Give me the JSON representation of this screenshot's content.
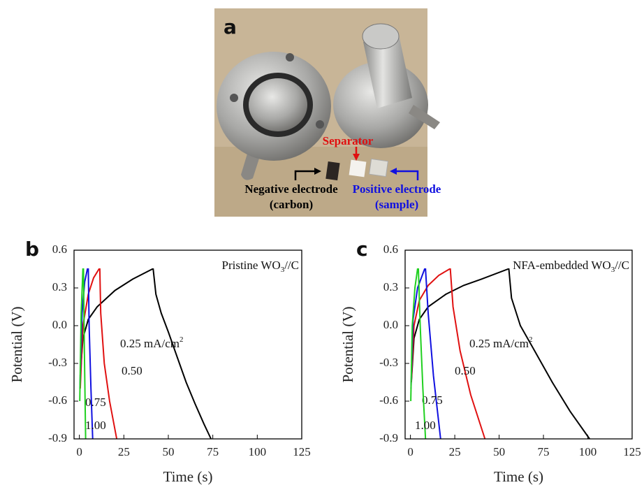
{
  "photo": {
    "panel_label": "a",
    "separator": "Separator",
    "negative": [
      "Negative electrode",
      "(carbon)"
    ],
    "positive": [
      "Positive electrode",
      "(sample)"
    ]
  },
  "chart_data": [
    {
      "type": "line",
      "panel_label": "b",
      "x_label": "Time (s)",
      "y_label": "Potential (V)",
      "note": {
        "text": "Pristine WO",
        "subscript": "3",
        "after": "//C",
        "color": "#2020d0"
      },
      "xlim": [
        -3,
        125
      ],
      "xticks": [
        0,
        25,
        50,
        75,
        100,
        125
      ],
      "ylim": [
        -0.9,
        0.6
      ],
      "yticks": [
        -0.9,
        -0.6,
        -0.3,
        {
          "value": 0,
          "label": "0.0"
        },
        0.3,
        0.6
      ],
      "series": [
        {
          "name": "0.25 mA/cm",
          "name_superscript": "2",
          "color": "#000000",
          "x": [
            0.5,
            2,
            5,
            10,
            20,
            30,
            41,
            41.5,
            43,
            46,
            50,
            55,
            60,
            65,
            70,
            74
          ],
          "values": [
            -0.4,
            -0.1,
            0.05,
            0.15,
            0.28,
            0.37,
            0.45,
            0.45,
            0.25,
            0.1,
            -0.05,
            -0.25,
            -0.45,
            -0.62,
            -0.78,
            -0.9
          ]
        },
        {
          "name": "0.50",
          "color": "#e01010",
          "x": [
            0.5,
            2,
            5,
            8,
            11,
            11.5,
            12,
            14,
            17,
            21
          ],
          "values": [
            -0.5,
            0.0,
            0.25,
            0.38,
            0.45,
            0.45,
            0.1,
            -0.3,
            -0.6,
            -0.9
          ]
        },
        {
          "name": "0.75",
          "color": "#1010e0",
          "x": [
            0.3,
            1.5,
            3,
            4.5,
            5,
            5.5,
            6.5,
            7.5
          ],
          "values": [
            -0.5,
            0.1,
            0.35,
            0.45,
            0.45,
            0.0,
            -0.5,
            -0.9
          ]
        },
        {
          "name": "1.00",
          "color": "#20d020",
          "x": [
            0.2,
            1,
            2,
            2.3,
            2.8,
            3.5
          ],
          "values": [
            -0.6,
            0.1,
            0.45,
            0.45,
            -0.2,
            -0.9
          ]
        }
      ]
    },
    {
      "type": "line",
      "panel_label": "c",
      "x_label": "Time (s)",
      "y_label": "Potential (V)",
      "note": {
        "text": "NFA-embedded WO",
        "subscript": "3",
        "after": "//C",
        "color": "#e01010"
      },
      "xlim": [
        -3,
        125
      ],
      "xticks": [
        0,
        25,
        50,
        75,
        100,
        125
      ],
      "ylim": [
        -0.9,
        0.6
      ],
      "yticks": [
        -0.9,
        -0.6,
        -0.3,
        {
          "value": 0,
          "label": "0.0"
        },
        0.3,
        0.6
      ],
      "series": [
        {
          "name": "0.25 mA/cm",
          "name_superscript": "2",
          "color": "#000000",
          "x": [
            0.5,
            2,
            5,
            10,
            20,
            30,
            40,
            55,
            55.5,
            57,
            62,
            70,
            80,
            90,
            101
          ],
          "values": [
            -0.45,
            -0.1,
            0.05,
            0.15,
            0.25,
            0.32,
            0.37,
            0.45,
            0.45,
            0.22,
            0.0,
            -0.2,
            -0.45,
            -0.68,
            -0.9
          ]
        },
        {
          "name": "0.50",
          "color": "#e01010",
          "x": [
            0.5,
            2,
            5,
            10,
            16,
            22,
            22.5,
            24,
            28,
            34,
            42
          ],
          "values": [
            -0.45,
            0.0,
            0.2,
            0.32,
            0.4,
            0.45,
            0.45,
            0.15,
            -0.2,
            -0.55,
            -0.9
          ]
        },
        {
          "name": "0.75",
          "color": "#1010e0",
          "x": [
            0.3,
            1.5,
            4,
            8,
            8.5,
            10,
            13,
            17
          ],
          "values": [
            -0.5,
            0.05,
            0.3,
            0.45,
            0.45,
            0.1,
            -0.4,
            -0.9
          ]
        },
        {
          "name": "1.00",
          "color": "#20d020",
          "x": [
            0.2,
            1,
            2.5,
            4,
            4.5,
            5.5,
            7,
            8.5
          ],
          "values": [
            -0.6,
            0.0,
            0.3,
            0.45,
            0.45,
            0.0,
            -0.5,
            -0.9
          ]
        }
      ]
    }
  ]
}
